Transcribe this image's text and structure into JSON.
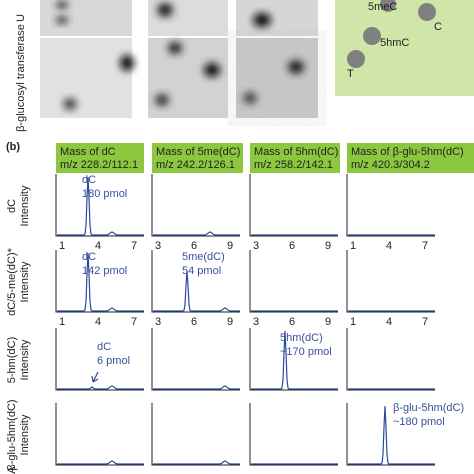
{
  "panel_a": {
    "row_labels": [
      "U",
      "β-glucosyl transferase"
    ],
    "schematic_labels": [
      "5meC",
      "C",
      "5hmC",
      "T"
    ]
  },
  "panel_b": {
    "label": "(b)",
    "columns": [
      {
        "line1": "Mass of dC",
        "line2": "m/z 228.2/112.1"
      },
      {
        "line1": "Mass of 5me(dC)",
        "line2": "m/z 242.2/126.1"
      },
      {
        "line1": "Mass of 5hm(dC)",
        "line2": "m/z 258.2/142.1"
      },
      {
        "line1": "Mass of β-glu-5hm(dC)",
        "line2": "m/z 420.3/304.2"
      }
    ],
    "rows": [
      {
        "line1": "dC",
        "line2": "Intensity"
      },
      {
        "line1": "dC/5-me(dC)*",
        "line2": "Intensity"
      },
      {
        "line1": "5-hm(dC)",
        "line2": "Intensity"
      },
      {
        "line1": "β-glu-5hm(dC)",
        "line2": "Intensity"
      },
      {
        "line1": "NA"
      }
    ],
    "x_ticks": [
      [
        "1",
        "4",
        "7"
      ],
      [
        "3",
        "6",
        "9"
      ],
      [
        "3",
        "6",
        "9"
      ],
      [
        "1",
        "4",
        "7"
      ]
    ],
    "annotations": [
      {
        "line1": "dC",
        "line2": "180 pmol"
      },
      {
        "line1": "dC",
        "line2": "142 pmol"
      },
      {
        "line1": "5me(dC)",
        "line2": "54 pmol"
      },
      {
        "line1": "dC",
        "line2": "6 pmol"
      },
      {
        "line1": "5hm(dC)",
        "line2": "~170 pmol"
      },
      {
        "line1": "β-glu-5hm(dC)",
        "line2": "~180 pmol"
      }
    ]
  }
}
